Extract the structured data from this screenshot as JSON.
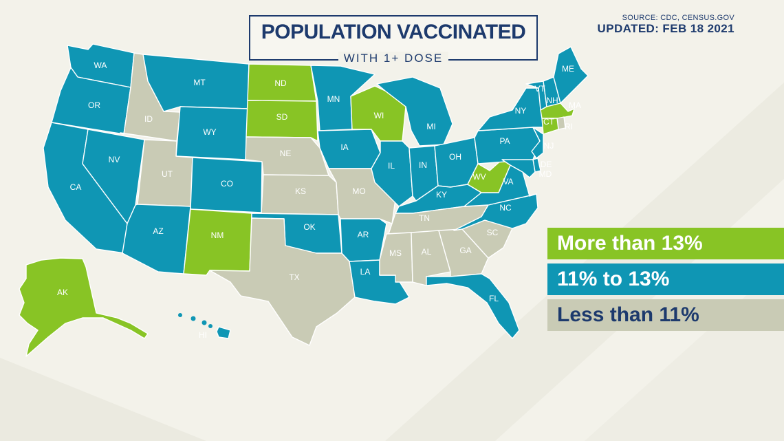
{
  "title": {
    "main": "POPULATION VACCINATED",
    "sub": "WITH 1+ DOSE"
  },
  "source": "SOURCE: CDC, CENSUS.GOV",
  "updated": "UPDATED: FEB 18 2021",
  "colors": {
    "high": "#88c425",
    "mid": "#0f96b4",
    "low": "#c9cbb5",
    "text_dark": "#1d3a6d",
    "background": "#f3f2ea"
  },
  "legend": [
    {
      "key": "high",
      "label": "More than 13%"
    },
    {
      "key": "mid",
      "label": "11% to 13%"
    },
    {
      "key": "low",
      "label": "Less than 11%"
    }
  ],
  "states": [
    {
      "code": "WA",
      "category": "mid"
    },
    {
      "code": "OR",
      "category": "mid"
    },
    {
      "code": "CA",
      "category": "mid"
    },
    {
      "code": "NV",
      "category": "mid"
    },
    {
      "code": "ID",
      "category": "low"
    },
    {
      "code": "MT",
      "category": "mid"
    },
    {
      "code": "WY",
      "category": "mid"
    },
    {
      "code": "UT",
      "category": "low"
    },
    {
      "code": "AZ",
      "category": "mid"
    },
    {
      "code": "CO",
      "category": "mid"
    },
    {
      "code": "NM",
      "category": "high"
    },
    {
      "code": "ND",
      "category": "high"
    },
    {
      "code": "SD",
      "category": "high"
    },
    {
      "code": "NE",
      "category": "low"
    },
    {
      "code": "KS",
      "category": "low"
    },
    {
      "code": "OK",
      "category": "mid"
    },
    {
      "code": "TX",
      "category": "low"
    },
    {
      "code": "MN",
      "category": "mid"
    },
    {
      "code": "IA",
      "category": "mid"
    },
    {
      "code": "MO",
      "category": "low"
    },
    {
      "code": "AR",
      "category": "mid"
    },
    {
      "code": "LA",
      "category": "mid"
    },
    {
      "code": "WI",
      "category": "high"
    },
    {
      "code": "IL",
      "category": "mid"
    },
    {
      "code": "MI",
      "category": "mid"
    },
    {
      "code": "IN",
      "category": "mid"
    },
    {
      "code": "OH",
      "category": "mid"
    },
    {
      "code": "KY",
      "category": "mid"
    },
    {
      "code": "TN",
      "category": "low"
    },
    {
      "code": "MS",
      "category": "low"
    },
    {
      "code": "AL",
      "category": "low"
    },
    {
      "code": "GA",
      "category": "low"
    },
    {
      "code": "FL",
      "category": "mid"
    },
    {
      "code": "SC",
      "category": "low"
    },
    {
      "code": "NC",
      "category": "mid"
    },
    {
      "code": "VA",
      "category": "mid"
    },
    {
      "code": "WV",
      "category": "high"
    },
    {
      "code": "PA",
      "category": "mid"
    },
    {
      "code": "NY",
      "category": "mid"
    },
    {
      "code": "VT",
      "category": "mid"
    },
    {
      "code": "NH",
      "category": "mid"
    },
    {
      "code": "ME",
      "category": "mid"
    },
    {
      "code": "MA",
      "category": "high"
    },
    {
      "code": "RI",
      "category": "low"
    },
    {
      "code": "CT",
      "category": "high"
    },
    {
      "code": "NJ",
      "category": "mid"
    },
    {
      "code": "DE",
      "category": "mid"
    },
    {
      "code": "MD",
      "category": "mid"
    },
    {
      "code": "AK",
      "category": "high"
    },
    {
      "code": "HI",
      "category": "mid"
    }
  ]
}
